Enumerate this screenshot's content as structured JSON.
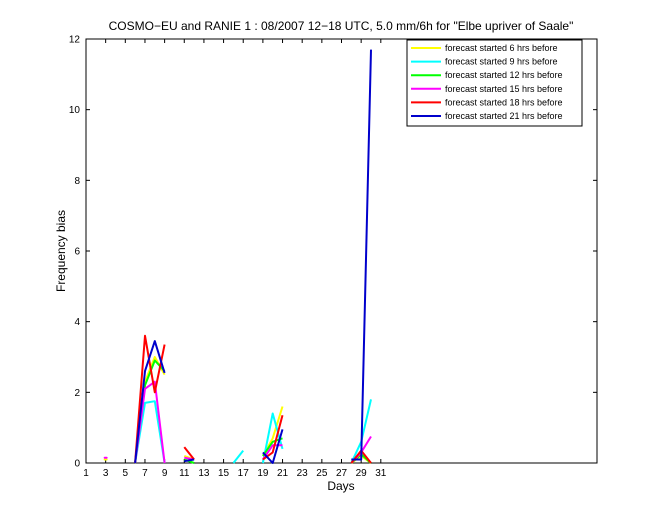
{
  "chart_data": {
    "type": "line",
    "title": "COSMO−EU and RANIE 1 : 08/2007 12−18 UTC, 5.0 mm/6h for \"Elbe upriver of Saale\"",
    "xlabel": "Days",
    "ylabel": "Frequency bias",
    "xlim": [
      1,
      53
    ],
    "ylim": [
      0,
      12
    ],
    "xticks": [
      1,
      3,
      5,
      7,
      9,
      11,
      13,
      15,
      17,
      19,
      21,
      23,
      25,
      27,
      29,
      31
    ],
    "xtick_labels": [
      "1",
      "3",
      "5",
      "7",
      "9",
      "11",
      "13",
      "15",
      "17",
      "19",
      "21",
      "23",
      "25",
      "27",
      "29",
      "31"
    ],
    "yticks": [
      0,
      2,
      4,
      6,
      8,
      10,
      12
    ],
    "ytick_labels": [
      "0",
      "2",
      "4",
      "6",
      "8",
      "10",
      "12"
    ],
    "legend_position": "top-right",
    "series": [
      {
        "name": "forecast started 6 hrs before",
        "color": "#ffff00",
        "segments": [
          [
            [
              3,
              0.1
            ]
          ],
          [
            [
              6,
              0
            ],
            [
              7,
              2.3
            ],
            [
              8,
              3.0
            ],
            [
              9,
              2.5
            ]
          ],
          [
            [
              11,
              0.2
            ],
            [
              12,
              0.1
            ]
          ],
          [
            [
              19,
              0.2
            ],
            [
              20,
              0.7
            ],
            [
              21,
              1.6
            ]
          ],
          [
            [
              28,
              0
            ],
            [
              29,
              0.2
            ],
            [
              30,
              0
            ]
          ]
        ]
      },
      {
        "name": "forecast started 9 hrs before",
        "color": "#00ffff",
        "segments": [
          [
            [
              6,
              0
            ],
            [
              7,
              1.7
            ],
            [
              8,
              1.75
            ],
            [
              9,
              0
            ]
          ],
          [
            [
              16,
              0
            ],
            [
              17,
              0.35
            ]
          ],
          [
            [
              19,
              0
            ],
            [
              20,
              1.4
            ],
            [
              21,
              0.4
            ]
          ],
          [
            [
              28,
              0
            ],
            [
              29,
              0.6
            ],
            [
              30,
              1.8
            ]
          ]
        ]
      },
      {
        "name": "forecast started 12 hrs before",
        "color": "#00ff00",
        "segments": [
          [
            [
              6,
              0
            ],
            [
              7,
              2.2
            ],
            [
              8,
              2.9
            ],
            [
              9,
              2.6
            ]
          ],
          [
            [
              11,
              0.1
            ],
            [
              12,
              0
            ]
          ],
          [
            [
              19,
              0.2
            ],
            [
              20,
              0.6
            ],
            [
              21,
              0.7
            ]
          ],
          [
            [
              28,
              0
            ],
            [
              29,
              0.25
            ],
            [
              30,
              0
            ]
          ]
        ]
      },
      {
        "name": "forecast started 15 hrs before",
        "color": "#ff00ff",
        "segments": [
          [
            [
              3,
              0.15
            ]
          ],
          [
            [
              6,
              0
            ],
            [
              7,
              2.1
            ],
            [
              8,
              2.3
            ],
            [
              9,
              0
            ]
          ],
          [
            [
              11,
              0.15
            ],
            [
              12,
              0.1
            ]
          ],
          [
            [
              19,
              0.1
            ],
            [
              20,
              0.5
            ],
            [
              21,
              0.5
            ]
          ],
          [
            [
              28,
              0
            ],
            [
              29,
              0.3
            ],
            [
              30,
              0.75
            ]
          ]
        ]
      },
      {
        "name": "forecast started 18 hrs before",
        "color": "#ff0000",
        "segments": [
          [
            [
              6,
              0
            ],
            [
              7,
              3.6
            ],
            [
              8,
              2.0
            ],
            [
              9,
              3.35
            ]
          ],
          [
            [
              11,
              0.45
            ],
            [
              12,
              0.1
            ]
          ],
          [
            [
              19,
              0.1
            ],
            [
              20,
              0.3
            ],
            [
              21,
              1.35
            ]
          ],
          [
            [
              28,
              0
            ],
            [
              29,
              0.35
            ],
            [
              30,
              0
            ]
          ]
        ]
      },
      {
        "name": "forecast started 21 hrs before",
        "color": "#0000cc",
        "segments": [
          [
            [
              6,
              0
            ],
            [
              7,
              2.6
            ],
            [
              8,
              3.45
            ],
            [
              9,
              2.55
            ]
          ],
          [
            [
              11,
              0.05
            ],
            [
              12,
              0.1
            ]
          ],
          [
            [
              19,
              0.3
            ],
            [
              20,
              0
            ],
            [
              21,
              0.95
            ]
          ],
          [
            [
              28,
              0.1
            ],
            [
              29,
              0.1
            ],
            [
              30,
              11.7
            ]
          ]
        ]
      }
    ]
  }
}
